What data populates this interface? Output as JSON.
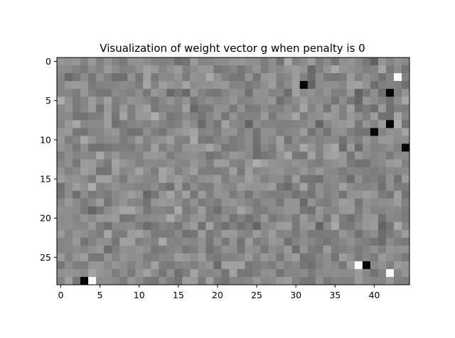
{
  "chart_data": {
    "type": "heatmap",
    "title": "Visualization of weight vector g when penalty is 0",
    "xlabel": "",
    "ylabel": "",
    "columns": 45,
    "rows": 29,
    "colormap": "gray",
    "xlim": [
      -0.5,
      44.5
    ],
    "ylim": [
      28.5,
      -0.5
    ],
    "x_ticks": [
      0,
      5,
      10,
      15,
      20,
      25,
      30,
      35,
      40
    ],
    "y_ticks": [
      0,
      5,
      10,
      15,
      20,
      25
    ],
    "grid": false,
    "legend": "none",
    "notable_cells": [
      {
        "row": 28,
        "col": 3,
        "level": "black"
      },
      {
        "row": 28,
        "col": 4,
        "level": "white"
      },
      {
        "row": 26,
        "col": 38,
        "level": "white"
      },
      {
        "row": 26,
        "col": 39,
        "level": "black"
      },
      {
        "row": 27,
        "col": 42,
        "level": "white"
      },
      {
        "row": 8,
        "col": 42,
        "level": "black"
      },
      {
        "row": 9,
        "col": 40,
        "level": "black"
      },
      {
        "row": 11,
        "col": 44,
        "level": "black"
      },
      {
        "row": 3,
        "col": 31,
        "level": "black"
      },
      {
        "row": 2,
        "col": 43,
        "level": "white"
      },
      {
        "row": 4,
        "col": 42,
        "level": "black"
      }
    ]
  }
}
